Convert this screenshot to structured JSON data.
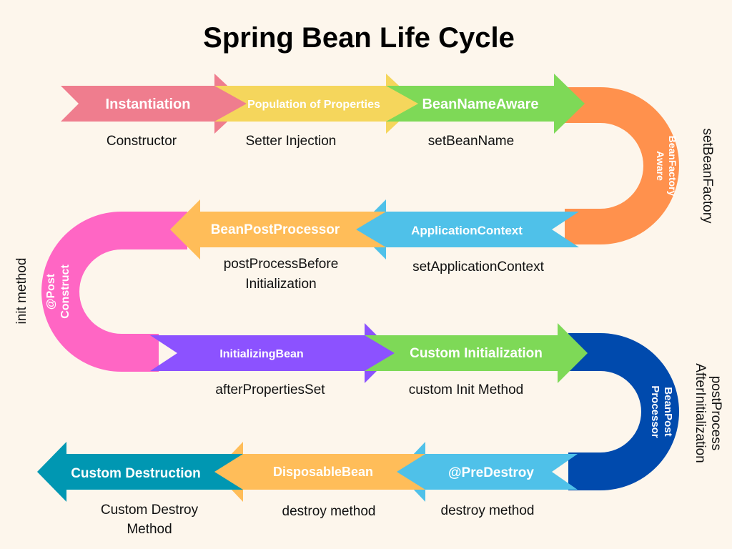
{
  "title": "Spring Bean Life Cycle",
  "stages": {
    "instantiation": {
      "label": "Instantiation",
      "caption": "Constructor",
      "color": "#ef7d8e"
    },
    "population": {
      "label": "Population of Properties",
      "caption": "Setter Injection",
      "color": "#f5d65c"
    },
    "bean_name_aware": {
      "label": "BeanNameAware",
      "caption": "setBeanName",
      "color": "#7ed957"
    },
    "bean_factory_aware": {
      "label_line1": "BeanFactory",
      "label_line2": "Aware",
      "caption": "setBeanFactory",
      "color": "#ff914d"
    },
    "application_context": {
      "label": "ApplicationContext",
      "caption": "setApplicationContext",
      "color": "#4fc1e9"
    },
    "bean_post_processor_before": {
      "label": "BeanPostProcessor",
      "caption_line1": "postProcessBefore",
      "caption_line2": "Initialization",
      "color": "#ffbd59"
    },
    "post_construct": {
      "label_line1": "@Post",
      "label_line2": "Construct",
      "caption": "init method",
      "color": "#ff66c4"
    },
    "initializing_bean": {
      "label": "InitializingBean",
      "caption": "afterPropertiesSet",
      "color": "#8c52ff"
    },
    "custom_initialization": {
      "label": "Custom Initialization",
      "caption": "custom Init Method",
      "color": "#7ed957"
    },
    "bean_post_processor_after": {
      "label_line1": "BeanPost",
      "label_line2": "Processor",
      "caption_line1": "postProcess",
      "caption_line2": "AfterInitialization",
      "color": "#004aad"
    },
    "pre_destroy": {
      "label": "@PreDestroy",
      "caption": "destroy method",
      "color": "#4fc1e9"
    },
    "disposable_bean": {
      "label": "DisposableBean",
      "caption": "destroy method",
      "color": "#ffbd59"
    },
    "custom_destruction": {
      "label": "Custom Destruction",
      "caption_line1": "Custom Destroy",
      "caption_line2": "Method",
      "color": "#0097b2"
    }
  }
}
